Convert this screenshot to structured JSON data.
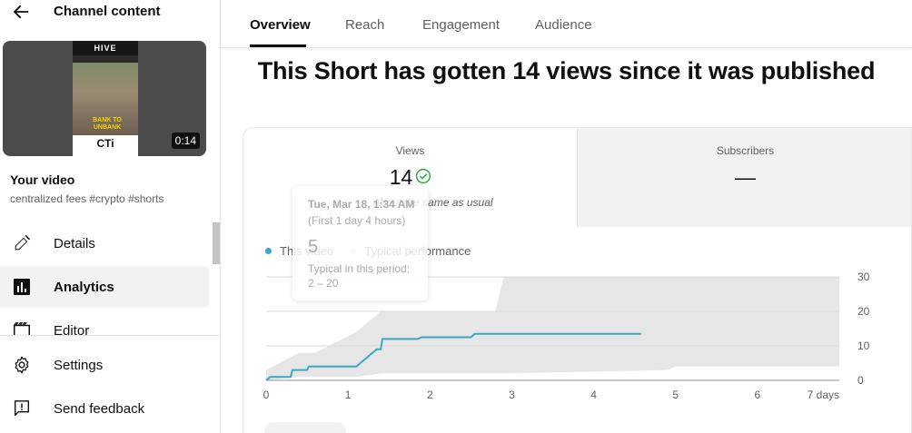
{
  "sidebar": {
    "title": "Channel content",
    "thumbnail": {
      "brand": "HIVE",
      "caption": "BANK TO UNBANK",
      "logo": "CTi",
      "duration": "0:14"
    },
    "video_heading": "Your video",
    "video_description": "centralized fees #crypto #shorts",
    "nav": [
      {
        "label": "Details",
        "icon": "pencil-icon",
        "active": false
      },
      {
        "label": "Analytics",
        "icon": "analytics-icon",
        "active": true
      },
      {
        "label": "Editor",
        "icon": "editor-icon",
        "active": false
      }
    ],
    "footer": [
      {
        "label": "Settings",
        "icon": "gear-icon"
      },
      {
        "label": "Send feedback",
        "icon": "feedback-icon"
      }
    ]
  },
  "tabs": [
    {
      "label": "Overview",
      "active": true
    },
    {
      "label": "Reach",
      "active": false
    },
    {
      "label": "Engagement",
      "active": false
    },
    {
      "label": "Audience",
      "active": false
    }
  ],
  "headline": "This Short has gotten 14 views since it was published",
  "metrics": {
    "views": {
      "label": "Views",
      "value": "14",
      "note": "About the same as usual"
    },
    "subscribers": {
      "label": "Subscribers",
      "value": "—"
    }
  },
  "legend": {
    "this_video": "This video",
    "typical": "Typical performance"
  },
  "tooltip": {
    "date": "Tue, Mar 18, 1:34 AM",
    "period": "(First 1 day 4 hours)",
    "value": "5",
    "typical_label": "Typical in this period:",
    "typical_range": "2 – 20"
  },
  "colors": {
    "accent_line": "#3ea6c4",
    "typical_band": "#e6e6e6",
    "check_green": "#2ba640"
  },
  "chart_data": {
    "type": "line",
    "x_tick_labels": [
      "0",
      "1",
      "2",
      "3",
      "4",
      "5",
      "6",
      "7 days"
    ],
    "y_tick_labels": [
      "30",
      "20",
      "10",
      "0"
    ],
    "xlim": [
      0,
      7
    ],
    "ylim": [
      0,
      30
    ],
    "grid": true,
    "legend_position": "top-left",
    "series": [
      {
        "name": "This video",
        "x": [
          0,
          0.05,
          0.3,
          0.32,
          0.5,
          0.52,
          1.1,
          1.15,
          1.3,
          1.35,
          1.4,
          1.42,
          1.85,
          1.9,
          2.5,
          2.55,
          4.58
        ],
        "y": [
          0,
          1,
          1,
          3,
          3,
          4,
          4,
          5,
          8,
          9,
          9,
          12,
          12,
          12.5,
          12.5,
          13.5,
          13.5
        ]
      }
    ],
    "typical_band": {
      "name": "Typical performance",
      "x": [
        0,
        0.4,
        0.6,
        1.1,
        1.4,
        2.8,
        2.9,
        4.9,
        5,
        7
      ],
      "low": [
        0,
        1,
        1,
        1,
        2,
        2,
        2,
        3,
        4,
        4
      ],
      "high": [
        3,
        8,
        8,
        14,
        20,
        20,
        30,
        30,
        30,
        30
      ]
    }
  }
}
